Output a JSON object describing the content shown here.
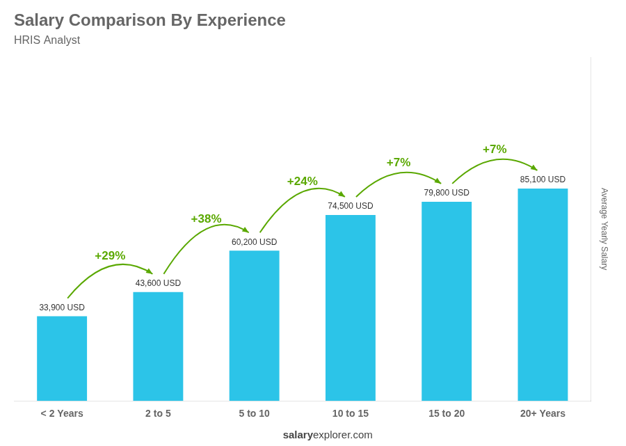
{
  "chart_data": {
    "type": "bar",
    "title": "Salary Comparison By Experience",
    "subtitle": "HRIS Analyst",
    "categories": [
      "< 2 Years",
      "2 to 5",
      "5 to 10",
      "10 to 15",
      "15 to 20",
      "20+ Years"
    ],
    "values": [
      33900,
      43600,
      60200,
      74500,
      79800,
      85100
    ],
    "value_labels": [
      "33,900 USD",
      "43,600 USD",
      "60,200 USD",
      "74,500 USD",
      "79,800 USD",
      "85,100 USD"
    ],
    "data_labels": true,
    "annotations": [
      "+29%",
      "+38%",
      "+24%",
      "+7%",
      "+7%"
    ],
    "ylabel": "Average Yearly Salary",
    "footer": [
      "salary",
      "explorer.com"
    ],
    "color": "#2CC4E8",
    "ylim": [
      0,
      137750
    ],
    "tick_labels": "x",
    "grid": false
  }
}
